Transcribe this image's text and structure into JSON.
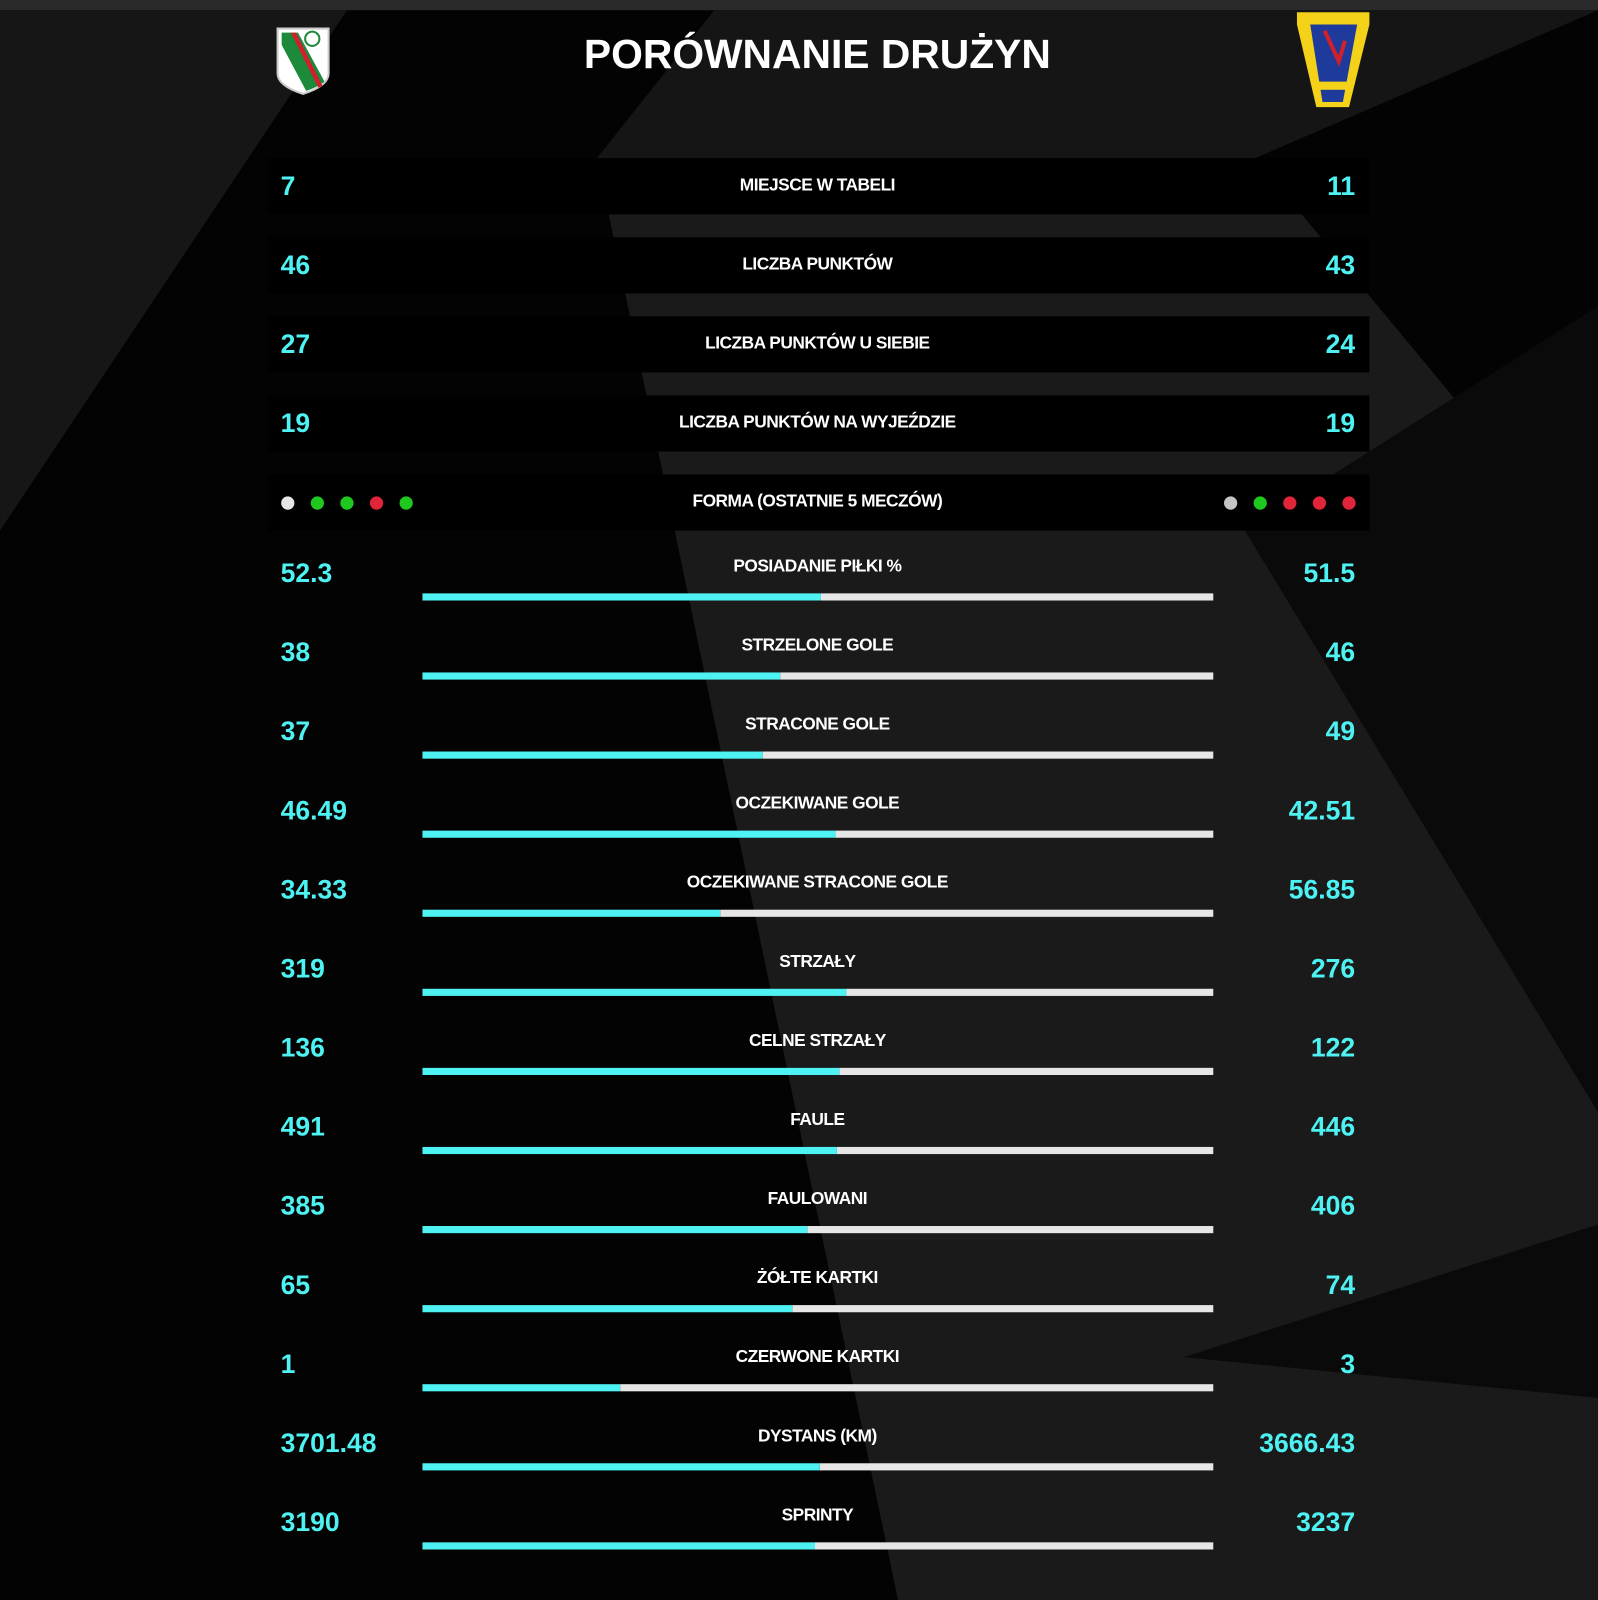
{
  "title": "PORÓWNANIE DRUŻYN",
  "standing_rows": [
    {
      "label": "MIEJSCE W TABELI",
      "home": 7,
      "away": 11
    },
    {
      "label": "LICZBA PUNKTÓW",
      "home": 46,
      "away": 43
    },
    {
      "label": "LICZBA PUNKTÓW U SIEBIE",
      "home": 27,
      "away": 24
    },
    {
      "label": "LICZBA PUNKTÓW NA WYJEŹDZIE",
      "home": 19,
      "away": 19
    }
  ],
  "form": {
    "label": "FORMA (OSTATNIE 5 MECZÓW)",
    "home": [
      "#e6e6e6",
      "#1ec81e",
      "#1ec81e",
      "#e0243a",
      "#1ec81e"
    ],
    "away": [
      "#c4c4c4",
      "#1ec81e",
      "#e0243a",
      "#e0243a",
      "#e0243a"
    ]
  },
  "stat_rows": [
    {
      "label": "POSIADANIE PIŁKI %",
      "home": 52.3,
      "away": 51.5
    },
    {
      "label": "STRZELONE GOLE",
      "home": 38,
      "away": 46
    },
    {
      "label": "STRACONE GOLE",
      "home": 37,
      "away": 49
    },
    {
      "label": "OCZEKIWANE GOLE",
      "home": 46.49,
      "away": 42.51
    },
    {
      "label": "OCZEKIWANE STRACONE GOLE",
      "home": 34.33,
      "away": 56.85
    },
    {
      "label": "STRZAŁY",
      "home": 319,
      "away": 276
    },
    {
      "label": "CELNE STRZAŁY",
      "home": 136,
      "away": 122
    },
    {
      "label": "FAULE",
      "home": 491,
      "away": 446
    },
    {
      "label": "FAULOWANI",
      "home": 385,
      "away": 406
    },
    {
      "label": "ŻÓŁTE KARTKI",
      "home": 65,
      "away": 74
    },
    {
      "label": "CZERWONE KARTKI",
      "home": 1,
      "away": 3
    },
    {
      "label": "DYSTANS (KM)",
      "home": 3701.48,
      "away": 3666.43
    },
    {
      "label": "SPRINTY",
      "home": 3190,
      "away": 3237
    }
  ],
  "colors": {
    "home_bar": "#4ef2f2",
    "rest_bar": "#e6e6e6",
    "value": "#4ef2f2"
  }
}
